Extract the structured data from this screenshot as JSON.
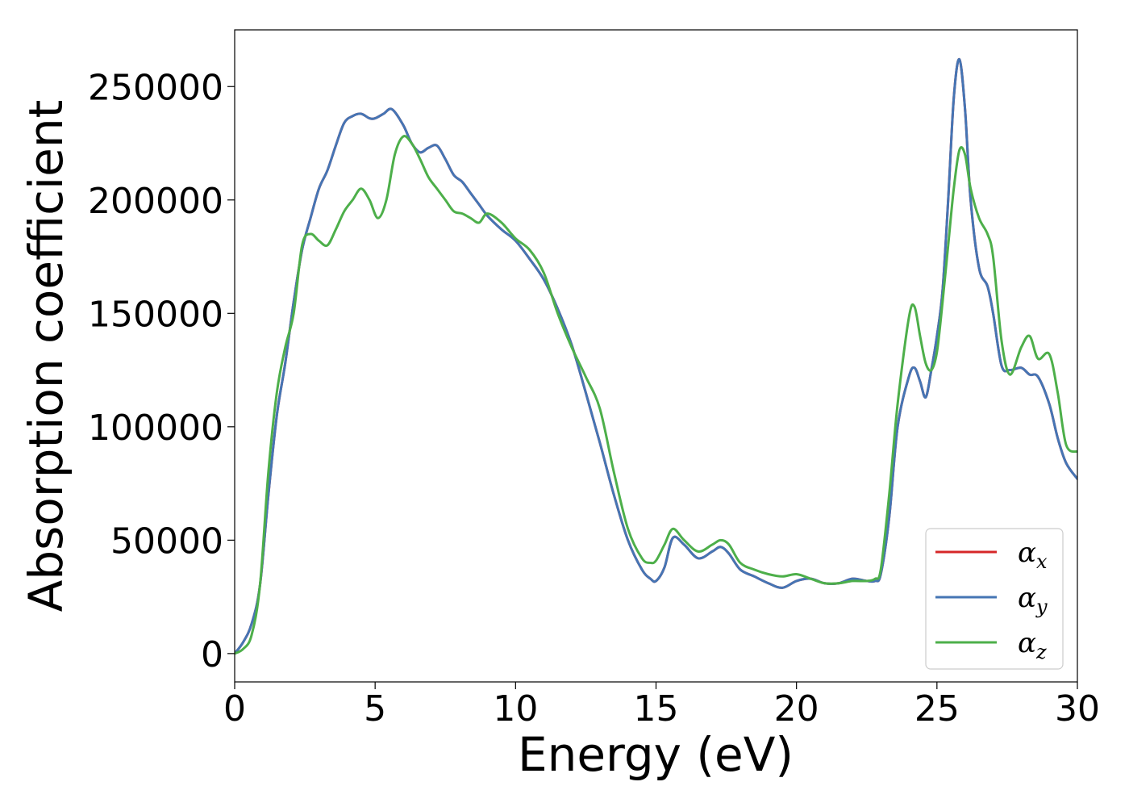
{
  "chart_data": {
    "type": "line",
    "xlabel": "Energy (eV)",
    "ylabel": "Absorption coefficient",
    "xlim": [
      0,
      30
    ],
    "ylim": [
      -12500,
      275000
    ],
    "xticks": [
      0,
      5,
      10,
      15,
      20,
      25,
      30
    ],
    "xtick_labels": [
      "0",
      "5",
      "10",
      "15",
      "20",
      "25",
      "30"
    ],
    "yticks": [
      0,
      50000,
      100000,
      150000,
      200000,
      250000
    ],
    "ytick_labels": [
      "0",
      "50000",
      "100000",
      "150000",
      "200000",
      "250000"
    ],
    "grid": false,
    "legend_position": "bottom-right",
    "series": [
      {
        "name": "α",
        "subscript": "x",
        "color": "#d62728",
        "x": [
          0,
          0.3,
          0.6,
          0.9,
          1.2,
          1.5,
          1.8,
          2.1,
          2.4,
          2.7,
          3.0,
          3.3,
          3.6,
          3.9,
          4.2,
          4.5,
          4.8,
          5.0,
          5.3,
          5.6,
          6.0,
          6.3,
          6.6,
          6.9,
          7.2,
          7.5,
          7.8,
          8.1,
          8.4,
          8.7,
          9.0,
          9.5,
          10.0,
          10.5,
          11.0,
          11.5,
          12.0,
          12.5,
          13.0,
          13.5,
          14.0,
          14.5,
          14.8,
          15.0,
          15.3,
          15.6,
          16.0,
          16.5,
          17.0,
          17.3,
          17.6,
          18.0,
          18.5,
          19.0,
          19.5,
          20.0,
          20.5,
          21.0,
          21.5,
          22.0,
          22.5,
          22.8,
          23.0,
          23.3,
          23.6,
          24.0,
          24.2,
          24.4,
          24.6,
          24.8,
          25.0,
          25.2,
          25.4,
          25.6,
          25.8,
          26.0,
          26.2,
          26.5,
          26.8,
          27.0,
          27.3,
          27.6,
          28.0,
          28.3,
          28.6,
          29.0,
          29.3,
          29.6,
          30.0
        ],
        "values": [
          0,
          5000,
          13000,
          30000,
          70000,
          105000,
          128000,
          155000,
          178000,
          192000,
          205000,
          213000,
          224000,
          234000,
          237000,
          238000,
          236000,
          236000,
          238000,
          240000,
          233000,
          225000,
          221000,
          223000,
          224000,
          218000,
          211000,
          208000,
          203000,
          198000,
          193000,
          187000,
          182000,
          174000,
          165000,
          152000,
          136000,
          115000,
          93000,
          70000,
          50000,
          37000,
          33000,
          32000,
          38000,
          51000,
          48000,
          42000,
          45000,
          47000,
          44000,
          37000,
          34000,
          31000,
          29000,
          32000,
          33000,
          31000,
          31000,
          33000,
          32000,
          32000,
          35000,
          60000,
          100000,
          122000,
          126000,
          120000,
          113000,
          125000,
          140000,
          160000,
          200000,
          245000,
          262000,
          240000,
          200000,
          170000,
          162000,
          150000,
          127000,
          125000,
          126000,
          123000,
          122000,
          110000,
          95000,
          84000,
          77000
        ]
      },
      {
        "name": "α",
        "subscript": "y",
        "color": "#4575b4",
        "x": [
          0,
          0.3,
          0.6,
          0.9,
          1.2,
          1.5,
          1.8,
          2.1,
          2.4,
          2.7,
          3.0,
          3.3,
          3.6,
          3.9,
          4.2,
          4.5,
          4.8,
          5.0,
          5.3,
          5.6,
          6.0,
          6.3,
          6.6,
          6.9,
          7.2,
          7.5,
          7.8,
          8.1,
          8.4,
          8.7,
          9.0,
          9.5,
          10.0,
          10.5,
          11.0,
          11.5,
          12.0,
          12.5,
          13.0,
          13.5,
          14.0,
          14.5,
          14.8,
          15.0,
          15.3,
          15.6,
          16.0,
          16.5,
          17.0,
          17.3,
          17.6,
          18.0,
          18.5,
          19.0,
          19.5,
          20.0,
          20.5,
          21.0,
          21.5,
          22.0,
          22.5,
          22.8,
          23.0,
          23.3,
          23.6,
          24.0,
          24.2,
          24.4,
          24.6,
          24.8,
          25.0,
          25.2,
          25.4,
          25.6,
          25.8,
          26.0,
          26.2,
          26.5,
          26.8,
          27.0,
          27.3,
          27.6,
          28.0,
          28.3,
          28.6,
          29.0,
          29.3,
          29.6,
          30.0
        ],
        "values": [
          0,
          5000,
          13000,
          30000,
          70000,
          105000,
          128000,
          155000,
          178000,
          192000,
          205000,
          213000,
          224000,
          234000,
          237000,
          238000,
          236000,
          236000,
          238000,
          240000,
          233000,
          225000,
          221000,
          223000,
          224000,
          218000,
          211000,
          208000,
          203000,
          198000,
          193000,
          187000,
          182000,
          174000,
          165000,
          152000,
          136000,
          115000,
          93000,
          70000,
          50000,
          37000,
          33000,
          32000,
          38000,
          51000,
          48000,
          42000,
          45000,
          47000,
          44000,
          37000,
          34000,
          31000,
          29000,
          32000,
          33000,
          31000,
          31000,
          33000,
          32000,
          32000,
          35000,
          60000,
          100000,
          122000,
          126000,
          120000,
          113000,
          125000,
          140000,
          160000,
          200000,
          245000,
          262000,
          240000,
          200000,
          170000,
          162000,
          150000,
          127000,
          125000,
          126000,
          123000,
          122000,
          110000,
          95000,
          84000,
          77000
        ]
      },
      {
        "name": "α",
        "subscript": "z",
        "color": "#4daf4a",
        "x": [
          0,
          0.3,
          0.6,
          0.9,
          1.2,
          1.5,
          1.8,
          2.1,
          2.4,
          2.7,
          3.0,
          3.3,
          3.6,
          3.9,
          4.2,
          4.5,
          4.8,
          5.1,
          5.4,
          5.7,
          6.0,
          6.3,
          6.6,
          6.9,
          7.2,
          7.5,
          7.8,
          8.1,
          8.4,
          8.7,
          9.0,
          9.5,
          10.0,
          10.5,
          11.0,
          11.5,
          12.0,
          12.5,
          13.0,
          13.5,
          14.0,
          14.5,
          14.8,
          15.0,
          15.3,
          15.6,
          16.0,
          16.5,
          17.0,
          17.3,
          17.6,
          18.0,
          18.5,
          19.0,
          19.5,
          20.0,
          20.5,
          21.0,
          21.5,
          22.0,
          22.5,
          22.8,
          23.0,
          23.3,
          23.6,
          24.0,
          24.2,
          24.4,
          24.6,
          24.8,
          25.0,
          25.2,
          25.4,
          25.6,
          25.8,
          26.0,
          26.2,
          26.5,
          26.8,
          27.0,
          27.3,
          27.6,
          28.0,
          28.3,
          28.6,
          29.0,
          29.3,
          29.6,
          30.0
        ],
        "values": [
          0,
          2000,
          8000,
          30000,
          80000,
          115000,
          135000,
          150000,
          180000,
          185000,
          182000,
          180000,
          187000,
          195000,
          200000,
          205000,
          200000,
          192000,
          200000,
          220000,
          228000,
          225000,
          218000,
          210000,
          205000,
          200000,
          195000,
          194000,
          192000,
          190000,
          194000,
          190000,
          183000,
          178000,
          168000,
          150000,
          135000,
          122000,
          108000,
          80000,
          55000,
          42000,
          40000,
          41000,
          48000,
          55000,
          50000,
          45000,
          48000,
          50000,
          48000,
          40000,
          37000,
          35000,
          34000,
          35000,
          33000,
          31000,
          31000,
          32000,
          32000,
          33000,
          37000,
          70000,
          110000,
          148000,
          153000,
          140000,
          128000,
          125000,
          133000,
          155000,
          180000,
          205000,
          222000,
          220000,
          205000,
          192000,
          185000,
          175000,
          138000,
          123000,
          135000,
          140000,
          130000,
          132000,
          115000,
          92000,
          89000
        ]
      }
    ]
  }
}
